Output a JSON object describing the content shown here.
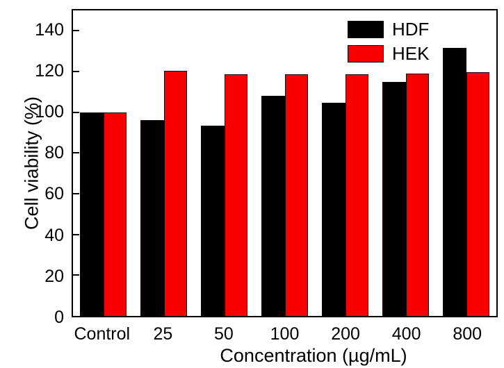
{
  "chart_data": {
    "type": "bar",
    "title": "",
    "xlabel": "Concentration (µg/mL)",
    "ylabel": "Cell viability (%)",
    "categories": [
      "Control",
      "25",
      "50",
      "100",
      "200",
      "400",
      "800"
    ],
    "series": [
      {
        "name": "HDF",
        "color": "#000000",
        "values": [
          100,
          96,
          93.5,
          108,
          104.5,
          115,
          131.5
        ]
      },
      {
        "name": "HEK",
        "color": "#f80000",
        "values": [
          100,
          120.5,
          118.5,
          118.5,
          118.5,
          119,
          119.5
        ]
      }
    ],
    "ylim": [
      0,
      150
    ],
    "yticks": [
      0,
      20,
      40,
      60,
      80,
      100,
      120,
      140
    ],
    "grid": false,
    "legend_position": "top-right",
    "legend": [
      "HDF",
      "HEK"
    ],
    "colors": {
      "background": "#ffffff",
      "axis": "#000000",
      "text": "#000000"
    }
  }
}
